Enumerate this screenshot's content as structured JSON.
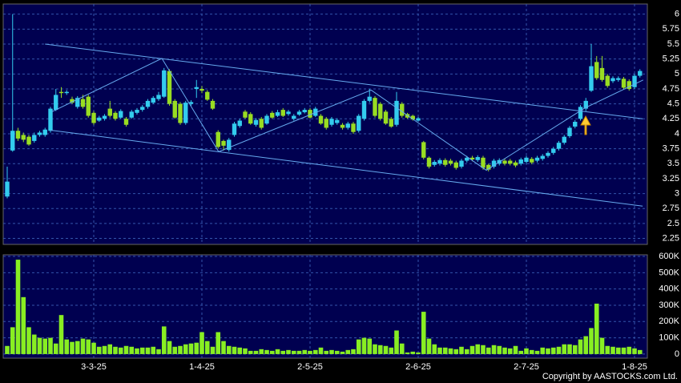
{
  "chart_data": [
    {
      "type": "candlestick",
      "up_color": "#33ccee",
      "down_color": "#99dd22",
      "grid": true,
      "ylim": [
        2.15,
        6.17
      ],
      "yticks": [
        6,
        5.75,
        5.5,
        5.25,
        5,
        4.75,
        4.5,
        4.25,
        4,
        3.75,
        3.5,
        3.25,
        3,
        2.75,
        2.5,
        2.25
      ],
      "open": [
        2.95,
        3.72,
        4.05,
        3.98,
        3.95,
        3.88,
        3.98,
        3.98,
        4.05,
        4.4,
        4.7,
        4.68,
        4.58,
        4.45,
        4.58,
        4.62,
        4.35,
        4.22,
        4.25,
        4.42,
        4.35,
        4.27,
        4.25,
        4.27,
        4.35,
        4.4,
        4.45,
        4.52,
        4.58,
        4.62,
        5.05,
        4.55,
        4.5,
        4.18,
        4.5,
        4.75,
        4.75,
        4.7,
        4.55,
        4.03,
        3.88,
        3.73,
        3.98,
        4.13,
        4.37,
        4.33,
        4.15,
        4.25,
        4.17,
        4.35,
        4.3,
        4.4,
        4.33,
        4.25,
        4.32,
        4.36,
        4.4,
        4.3,
        4.3,
        4.25,
        4.15,
        4.18,
        4.15,
        4.1,
        4.17,
        4.05,
        4.25,
        4.55,
        4.6,
        4.5,
        4.37,
        4.25,
        4.15,
        4.5,
        4.33,
        4.3,
        4.22,
        3.86,
        3.6,
        3.48,
        3.5,
        3.56,
        3.55,
        3.52,
        3.45,
        3.55,
        3.6,
        3.56,
        3.6,
        3.48,
        3.45,
        3.5,
        3.55,
        3.55,
        3.52,
        3.5,
        3.53,
        3.58,
        3.55,
        3.58,
        3.63,
        3.68,
        3.75,
        3.85,
        3.96,
        4.12,
        4.25,
        4.42,
        4.72,
        5.2,
        5.1,
        4.97,
        4.88,
        4.9,
        4.92,
        4.88,
        4.78,
        4.97
      ],
      "high": [
        3.45,
        6.0,
        4.1,
        4.02,
        3.98,
        4.02,
        4.05,
        4.1,
        4.45,
        4.75,
        4.78,
        4.73,
        4.62,
        4.63,
        4.65,
        4.65,
        4.38,
        4.3,
        4.33,
        4.55,
        4.38,
        4.41,
        4.28,
        4.4,
        4.43,
        4.48,
        4.58,
        4.63,
        4.7,
        5.1,
        5.08,
        4.58,
        4.53,
        4.55,
        4.56,
        4.9,
        4.8,
        4.73,
        4.58,
        4.06,
        3.9,
        3.93,
        4.2,
        4.25,
        4.4,
        4.36,
        4.26,
        4.28,
        4.33,
        4.38,
        4.4,
        4.43,
        4.4,
        4.33,
        4.4,
        4.43,
        4.43,
        4.45,
        4.33,
        4.28,
        4.28,
        4.26,
        4.18,
        4.2,
        4.2,
        4.33,
        4.58,
        4.75,
        4.63,
        4.53,
        4.4,
        4.28,
        4.7,
        4.53,
        4.35,
        4.32,
        4.28,
        3.88,
        3.62,
        3.56,
        3.59,
        3.59,
        3.58,
        3.55,
        3.58,
        3.63,
        3.63,
        3.64,
        3.63,
        3.5,
        3.58,
        3.59,
        3.58,
        3.58,
        3.55,
        3.6,
        3.63,
        3.61,
        3.63,
        3.66,
        3.71,
        3.78,
        3.88,
        3.98,
        4.13,
        4.23,
        4.48,
        4.6,
        5.5,
        5.3,
        5.3,
        5.0,
        4.96,
        4.96,
        4.95,
        4.91,
        5.0,
        5.08
      ],
      "low": [
        2.92,
        3.7,
        3.88,
        3.86,
        3.8,
        3.85,
        3.95,
        3.95,
        4.02,
        4.38,
        4.6,
        4.65,
        4.5,
        4.42,
        4.42,
        4.27,
        4.15,
        4.2,
        4.22,
        4.27,
        4.22,
        4.25,
        4.12,
        4.25,
        4.32,
        4.37,
        4.42,
        4.5,
        4.55,
        4.6,
        4.47,
        4.25,
        4.15,
        4.15,
        4.47,
        4.6,
        4.68,
        4.55,
        4.4,
        3.75,
        3.72,
        3.7,
        3.95,
        4.1,
        4.25,
        4.15,
        4.12,
        4.07,
        4.15,
        4.25,
        4.28,
        4.28,
        4.3,
        4.22,
        4.3,
        4.34,
        4.25,
        4.28,
        4.15,
        4.07,
        4.12,
        4.15,
        4.07,
        4.07,
        4.0,
        4.02,
        4.22,
        4.52,
        4.27,
        4.22,
        4.15,
        4.1,
        4.12,
        4.27,
        4.25,
        4.22,
        4.2,
        3.57,
        3.42,
        3.45,
        3.47,
        3.45,
        3.47,
        3.4,
        3.42,
        3.52,
        3.54,
        3.53,
        3.4,
        3.37,
        3.42,
        3.47,
        3.47,
        3.47,
        3.44,
        3.47,
        3.5,
        3.49,
        3.52,
        3.55,
        3.6,
        3.65,
        3.72,
        3.82,
        3.93,
        4.09,
        4.22,
        4.38,
        4.7,
        4.9,
        4.87,
        4.77,
        4.85,
        4.87,
        4.74,
        4.72,
        4.75,
        4.94
      ],
      "close": [
        3.2,
        4.05,
        3.92,
        3.9,
        3.82,
        3.98,
        4.02,
        4.07,
        4.42,
        4.65,
        4.68,
        4.7,
        4.52,
        4.6,
        4.45,
        4.3,
        4.18,
        4.27,
        4.3,
        4.3,
        4.25,
        4.38,
        4.15,
        4.37,
        4.4,
        4.45,
        4.55,
        4.6,
        4.65,
        5.06,
        4.5,
        4.27,
        4.18,
        4.52,
        4.53,
        4.78,
        4.72,
        4.57,
        4.42,
        3.78,
        3.8,
        3.9,
        4.17,
        4.22,
        4.27,
        4.17,
        4.23,
        4.1,
        4.3,
        4.27,
        4.36,
        4.3,
        4.37,
        4.3,
        4.37,
        4.4,
        4.27,
        4.42,
        4.17,
        4.1,
        4.25,
        4.23,
        4.1,
        4.17,
        4.03,
        4.3,
        4.55,
        4.62,
        4.3,
        4.25,
        4.17,
        4.12,
        4.55,
        4.3,
        4.27,
        4.24,
        4.26,
        3.6,
        3.45,
        3.53,
        3.56,
        3.48,
        3.5,
        3.43,
        3.55,
        3.6,
        3.57,
        3.61,
        3.43,
        3.4,
        3.55,
        3.56,
        3.5,
        3.5,
        3.47,
        3.57,
        3.6,
        3.52,
        3.6,
        3.63,
        3.68,
        3.75,
        3.85,
        3.95,
        4.1,
        4.2,
        4.45,
        4.55,
        5.13,
        4.93,
        4.9,
        4.8,
        4.93,
        4.93,
        4.77,
        4.75,
        4.97,
        5.05
      ],
      "trend_lines": [
        {
          "color": "#66aaee",
          "x": [
            7,
            117.5
          ],
          "y": [
            5.5,
            4.25
          ]
        },
        {
          "color": "#66aaee",
          "x": [
            8,
            117.5
          ],
          "y": [
            4.06,
            2.79
          ]
        },
        {
          "color": "#66aaee",
          "x": [
            8.3,
            28.6,
            39.1,
            67.3,
            88.6,
            106.8,
            117.6
          ],
          "y": [
            4.37,
            5.26,
            3.7,
            4.73,
            3.39,
            4.43,
            4.9
          ]
        }
      ]
    },
    {
      "type": "bar",
      "color": "#88ee22",
      "grid": true,
      "ylim": [
        -25000,
        610000
      ],
      "yticks": [
        {
          "value": 600000,
          "label": "600K"
        },
        {
          "value": 500000,
          "label": "500K"
        },
        {
          "value": 400000,
          "label": "400K"
        },
        {
          "value": 300000,
          "label": "300K"
        },
        {
          "value": 200000,
          "label": "200K"
        },
        {
          "value": 100000,
          "label": "100K"
        },
        0
      ],
      "categories": [
        null,
        null,
        null,
        null,
        null,
        null,
        null,
        null,
        null,
        null,
        null,
        null,
        null,
        null,
        null,
        null,
        "3-3-25",
        null,
        null,
        null,
        null,
        null,
        null,
        null,
        null,
        null,
        null,
        null,
        null,
        null,
        null,
        null,
        null,
        null,
        null,
        null,
        "1-4-25",
        null,
        null,
        null,
        null,
        null,
        null,
        null,
        null,
        null,
        null,
        null,
        null,
        null,
        null,
        null,
        null,
        null,
        null,
        null,
        "2-5-25",
        null,
        null,
        null,
        null,
        null,
        null,
        null,
        null,
        null,
        null,
        null,
        null,
        null,
        null,
        null,
        null,
        null,
        null,
        null,
        "2-6-25",
        null,
        null,
        null,
        null,
        null,
        null,
        null,
        null,
        null,
        null,
        null,
        null,
        null,
        null,
        null,
        null,
        null,
        null,
        null,
        "2-7-25",
        null,
        null,
        null,
        null,
        null,
        null,
        null,
        null,
        null,
        null,
        null,
        null,
        null,
        null,
        null,
        null,
        null,
        null,
        null,
        "1-8-25",
        null
      ],
      "values": [
        50000,
        165000,
        580000,
        350000,
        165000,
        120000,
        100000,
        95000,
        100000,
        65000,
        240000,
        90000,
        75000,
        80000,
        95000,
        90000,
        70000,
        45000,
        50000,
        60000,
        45000,
        40000,
        50000,
        45000,
        35000,
        40000,
        40000,
        45000,
        30000,
        170000,
        80000,
        45000,
        50000,
        60000,
        65000,
        70000,
        135000,
        80000,
        45000,
        135000,
        80000,
        50000,
        45000,
        40000,
        35000,
        20000,
        20000,
        30000,
        25000,
        20000,
        30000,
        20000,
        25000,
        20000,
        20000,
        25000,
        20000,
        25000,
        40000,
        20000,
        25000,
        20000,
        15000,
        25000,
        30000,
        90000,
        100000,
        95000,
        60000,
        55000,
        50000,
        40000,
        145000,
        65000,
        10000,
        15000,
        10000,
        260000,
        95000,
        60000,
        40000,
        40000,
        35000,
        30000,
        45000,
        30000,
        50000,
        60000,
        55000,
        40000,
        55000,
        50000,
        40000,
        35000,
        50000,
        20000,
        35000,
        25000,
        20000,
        40000,
        35000,
        40000,
        45000,
        60000,
        60000,
        55000,
        90000,
        110000,
        160000,
        310000,
        100000,
        50000,
        45000,
        40000,
        40000,
        45000,
        35000,
        25000
      ]
    }
  ],
  "copyright": "Copyright by AASTOCKS.com Ltd."
}
